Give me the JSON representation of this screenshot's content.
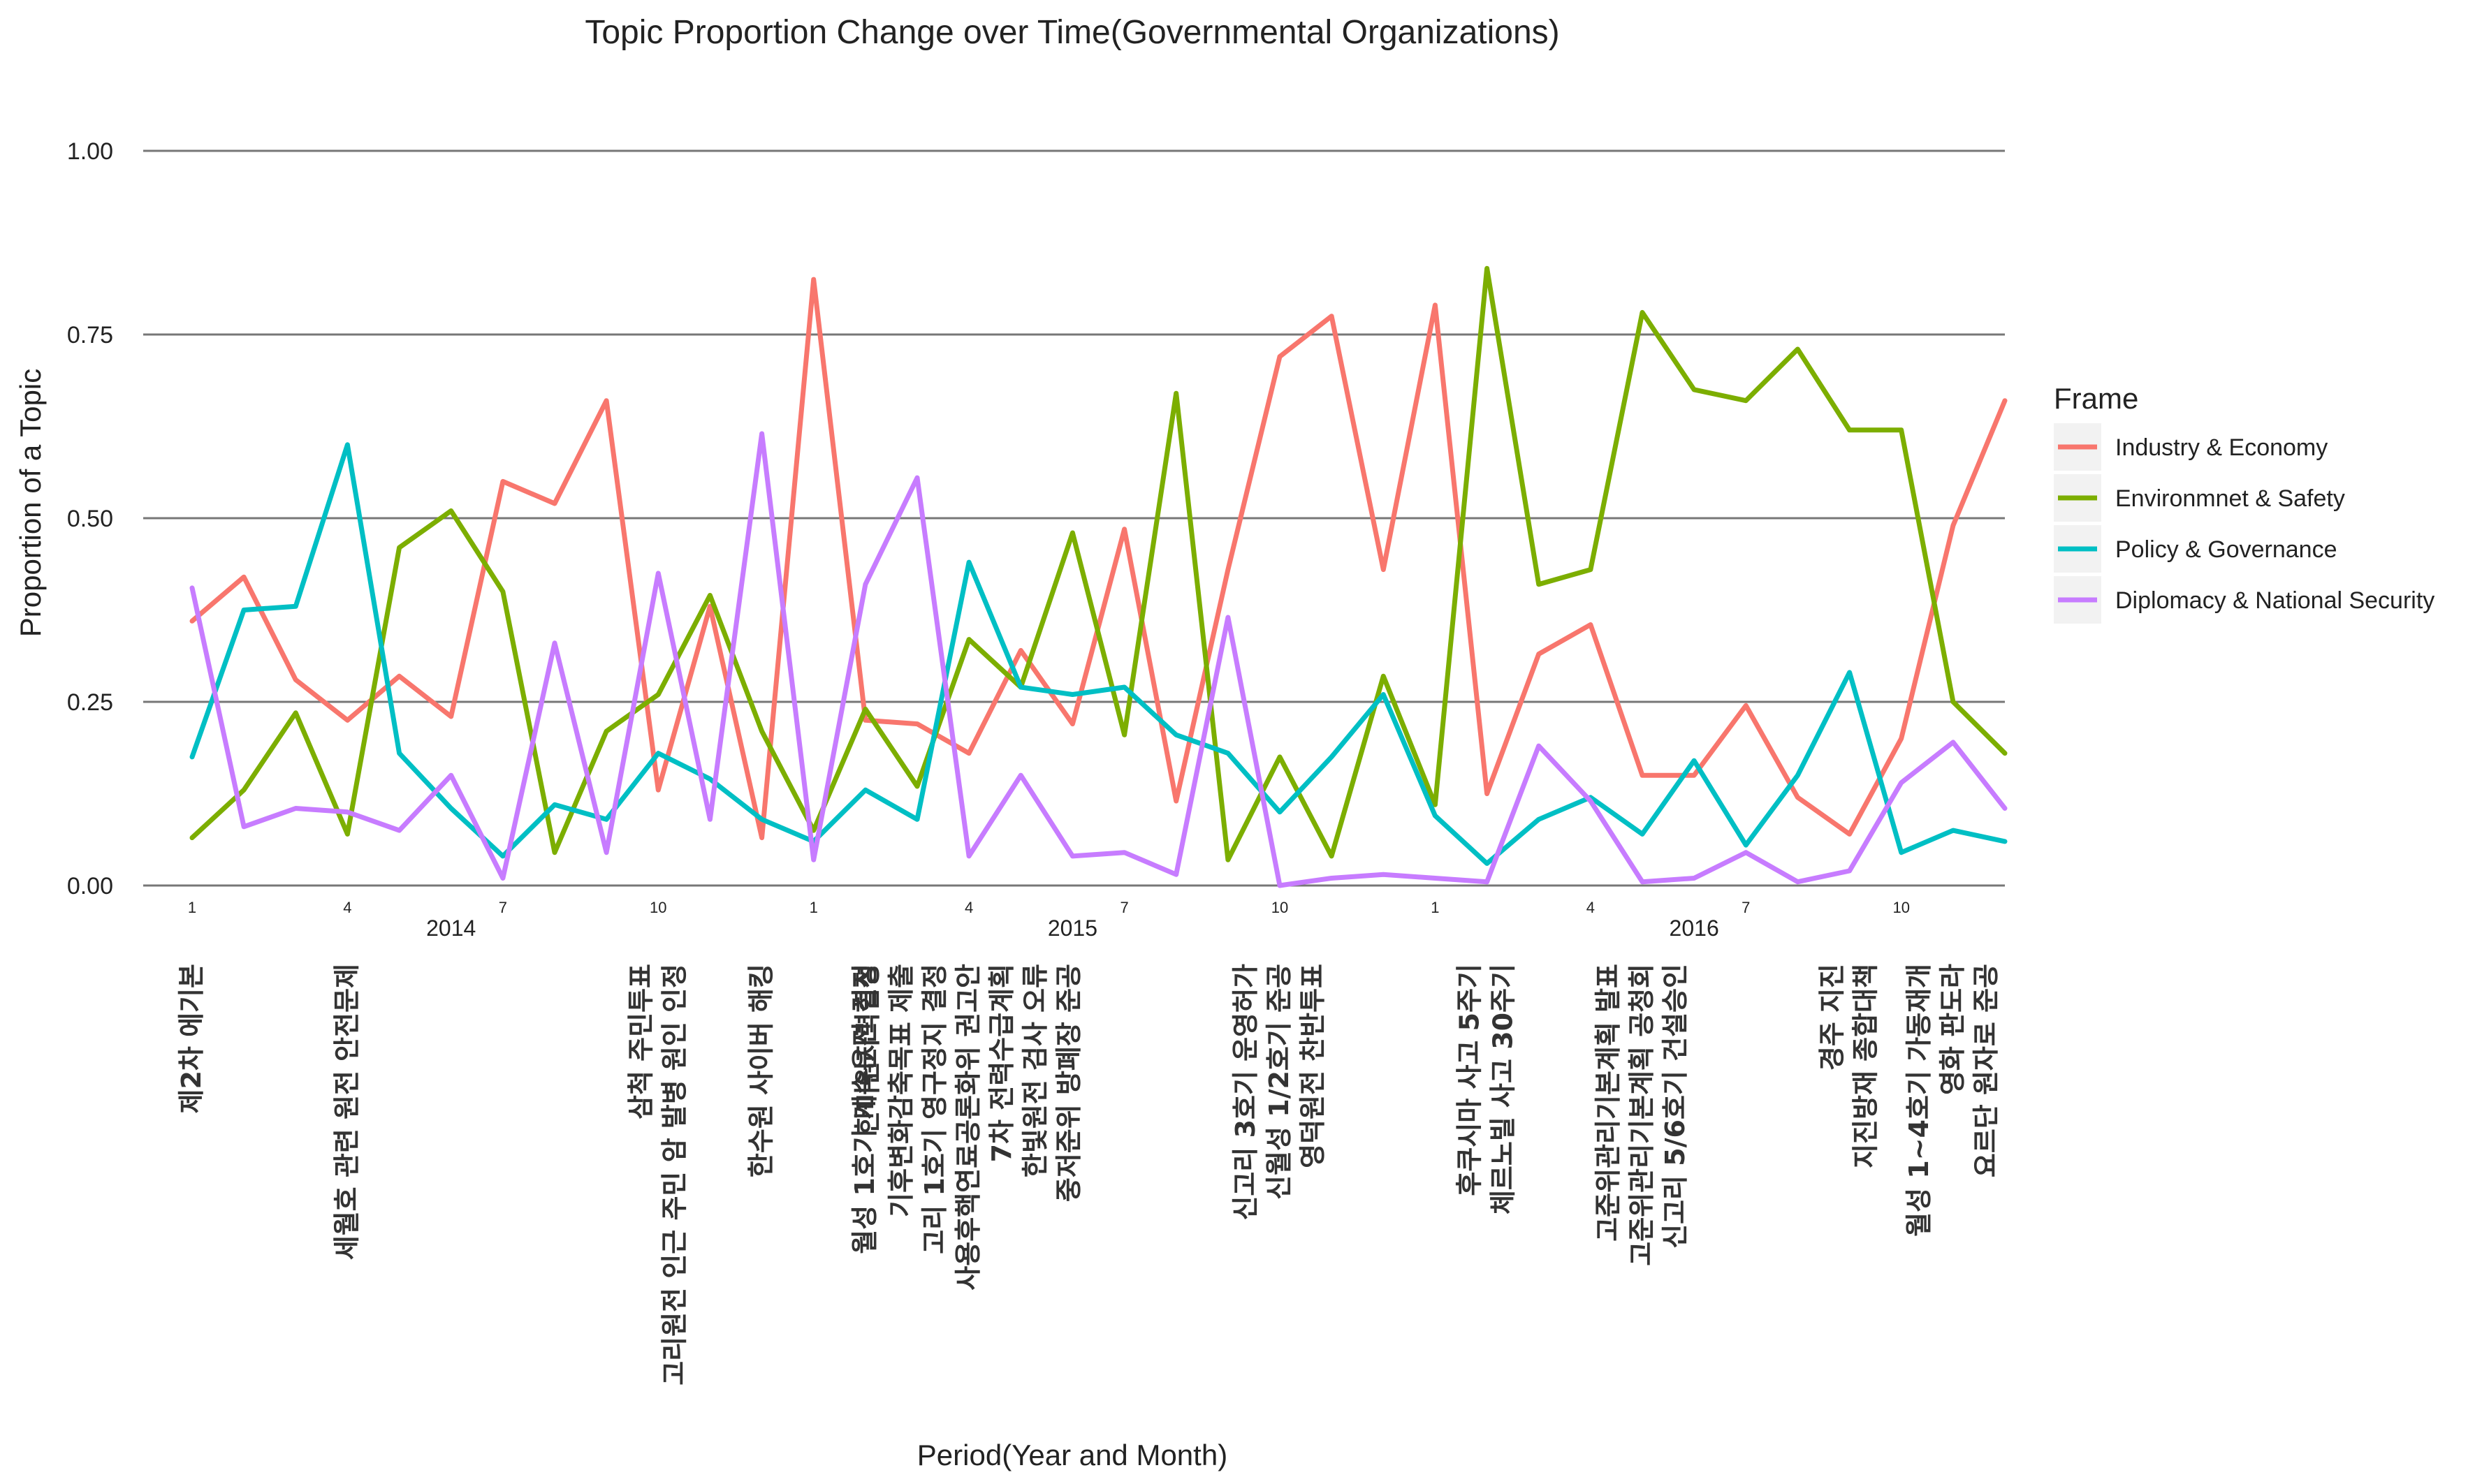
{
  "chart_data": {
    "type": "line",
    "title": "Topic Proportion Change over Time(Governmental Organizations)",
    "xlabel": "Period(Year and Month)",
    "ylabel": "Proportion of a Topic",
    "ylim": [
      0,
      1
    ],
    "y_ticks": [
      "0.00",
      "0.25",
      "0.50",
      "0.75",
      "1.00"
    ],
    "x_months": [
      "2014-01",
      "2014-02",
      "2014-03",
      "2014-04",
      "2014-05",
      "2014-06",
      "2014-07",
      "2014-08",
      "2014-09",
      "2014-10",
      "2014-11",
      "2014-12",
      "2015-01",
      "2015-02",
      "2015-03",
      "2015-04",
      "2015-05",
      "2015-06",
      "2015-07",
      "2015-08",
      "2015-09",
      "2015-10",
      "2015-11",
      "2015-12",
      "2016-01",
      "2016-02",
      "2016-03",
      "2016-04",
      "2016-05",
      "2016-06",
      "2016-07",
      "2016-08",
      "2016-09",
      "2016-10",
      "2016-11",
      "2016-12"
    ],
    "month_ticks": [
      {
        "month": "2014-01",
        "label": "1"
      },
      {
        "month": "2014-04",
        "label": "4"
      },
      {
        "month": "2014-07",
        "label": "7"
      },
      {
        "month": "2014-10",
        "label": "10"
      },
      {
        "month": "2015-01",
        "label": "1"
      },
      {
        "month": "2015-04",
        "label": "4"
      },
      {
        "month": "2015-07",
        "label": "7"
      },
      {
        "month": "2015-10",
        "label": "10"
      },
      {
        "month": "2016-01",
        "label": "1"
      },
      {
        "month": "2016-04",
        "label": "4"
      },
      {
        "month": "2016-07",
        "label": "7"
      },
      {
        "month": "2016-10",
        "label": "10"
      }
    ],
    "year_ticks": [
      {
        "month": "2014-06",
        "label": "2014"
      },
      {
        "month": "2015-06",
        "label": "2015"
      },
      {
        "month": "2016-06",
        "label": "2016"
      }
    ],
    "legend_title": "Frame",
    "legend_position": "right",
    "grid": "horizontal major lines",
    "series": [
      {
        "name": "Industry & Economy",
        "color": "#F8766D",
        "values": [
          0.36,
          0.42,
          0.28,
          0.225,
          0.285,
          0.23,
          0.55,
          0.52,
          0.66,
          0.13,
          0.38,
          0.065,
          0.825,
          0.225,
          0.22,
          0.18,
          0.32,
          0.22,
          0.485,
          0.115,
          0.43,
          0.72,
          0.775,
          0.43,
          0.79,
          0.125,
          0.315,
          0.355,
          0.15,
          0.15,
          0.245,
          0.12,
          0.07,
          0.2,
          0.49,
          0.66
        ]
      },
      {
        "name": "Environmnet & Safety",
        "color": "#7CAE00",
        "values": [
          0.065,
          0.13,
          0.235,
          0.07,
          0.46,
          0.51,
          0.4,
          0.045,
          0.21,
          0.26,
          0.395,
          0.21,
          0.075,
          0.24,
          0.135,
          0.335,
          0.27,
          0.48,
          0.205,
          0.67,
          0.035,
          0.175,
          0.04,
          0.285,
          0.11,
          0.84,
          0.41,
          0.43,
          0.78,
          0.675,
          0.66,
          0.73,
          0.62,
          0.62,
          0.25,
          0.18
        ]
      },
      {
        "name": "Policy & Governance",
        "color": "#00BFC4",
        "values": [
          0.175,
          0.375,
          0.38,
          0.6,
          0.18,
          0.105,
          0.04,
          0.11,
          0.09,
          0.18,
          0.145,
          0.09,
          0.06,
          0.13,
          0.09,
          0.44,
          0.27,
          0.26,
          0.27,
          0.205,
          0.18,
          0.1,
          0.175,
          0.26,
          0.095,
          0.03,
          0.09,
          0.12,
          0.07,
          0.17,
          0.055,
          0.15,
          0.29,
          0.045,
          0.075,
          0.06
        ]
      },
      {
        "name": "Diplomacy & National Security",
        "color": "#C77CFF",
        "values": [
          0.405,
          0.08,
          0.105,
          0.1,
          0.075,
          0.15,
          0.01,
          0.33,
          0.045,
          0.425,
          0.09,
          0.615,
          0.035,
          0.41,
          0.555,
          0.04,
          0.15,
          0.04,
          0.045,
          0.015,
          0.365,
          0.0,
          0.01,
          0.015,
          0.01,
          0.005,
          0.19,
          0.115,
          0.005,
          0.01,
          0.045,
          0.005,
          0.02,
          0.14,
          0.195,
          0.105
        ]
      }
    ],
    "events": [
      {
        "month": "2014-01",
        "lines": [
          "제2차 에기본"
        ]
      },
      {
        "month": "2014-04",
        "lines": [
          "세월호 관련 원전 안전문제"
        ]
      },
      {
        "month": "2014-10",
        "lines": [
          "삼척 주민투표",
          "고리원전 인근 주민 암 발병 원인 인정"
        ]
      },
      {
        "month": "2014-12",
        "lines": [
          "한수원 사이버 해킹"
        ]
      },
      {
        "month": "2015-02",
        "lines": [
          "월성 1호기 계속운전 결정"
        ]
      },
      {
        "month": "2015-04",
        "lines": [
          "한미원자력협정",
          "기후변화감축목표 제출",
          "고리 1호기 영구정지 결정",
          "사용후핵연료공론화위 권고안",
          "7차 전력수급계획",
          "한빛원전 검사 오류",
          "중저준위 방폐장 준공"
        ]
      },
      {
        "month": "2015-10",
        "lines": [
          "신고리 3호기 운영허가",
          "신월성 1/2호기 준공",
          "영덕원전 찬반투표"
        ]
      },
      {
        "month": "2016-02",
        "lines": [
          "후쿠시마 사고 5주기",
          "체르노빌 사고 30주기"
        ]
      },
      {
        "month": "2016-05",
        "lines": [
          "고준위관리기본계획 발표",
          "고준위관리기본계획 공청회",
          "신고리 5/6호기 건설승인"
        ]
      },
      {
        "month": "2016-09",
        "lines": [
          "경주 지진",
          "지진방재 종합대책"
        ]
      },
      {
        "month": "2016-11",
        "lines": [
          "월성 1~4호기 가동재개",
          "영화 판도라",
          "요르단 원자로 준공"
        ]
      }
    ]
  }
}
